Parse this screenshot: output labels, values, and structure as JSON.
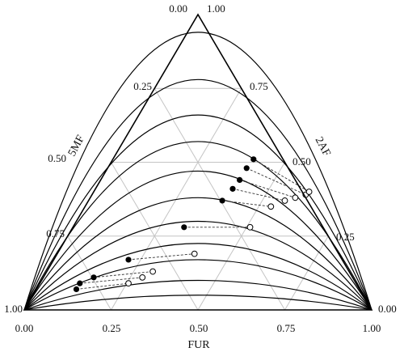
{
  "chart_data": {
    "type": "ternary",
    "axes": {
      "bottom": {
        "label": "FUR",
        "ticks": [
          "0.00",
          "0.25",
          "0.50",
          "0.75",
          "1.00"
        ]
      },
      "left": {
        "label": "5MF",
        "ticks": [
          "0.00",
          "0.25",
          "0.50",
          "0.75",
          "1.00"
        ]
      },
      "right": {
        "label": "2AF",
        "ticks": [
          "1.00",
          "0.75",
          "0.50",
          "0.25",
          "0.00"
        ]
      }
    },
    "grid": true,
    "grid_step": 0.25,
    "binodal_curves_peak_y": [
      0.94,
      0.78,
      0.66,
      0.57,
      0.47,
      0.38,
      0.3,
      0.225,
      0.17,
      0.1,
      0.05
    ],
    "tie_lines": [
      {
        "filled": [
          0.15,
          0.07
        ],
        "open": [
          0.3,
          0.09
        ]
      },
      {
        "filled": [
          0.16,
          0.09
        ],
        "open": [
          0.34,
          0.11
        ]
      },
      {
        "filled": [
          0.2,
          0.11
        ],
        "open": [
          0.37,
          0.13
        ]
      },
      {
        "filled": [
          0.3,
          0.17
        ],
        "open": [
          0.49,
          0.19
        ]
      },
      {
        "filled": [
          0.46,
          0.28
        ],
        "open": [
          0.65,
          0.28
        ]
      },
      {
        "filled": [
          0.57,
          0.37
        ],
        "open": [
          0.71,
          0.35
        ]
      },
      {
        "filled": [
          0.6,
          0.41
        ],
        "open": [
          0.75,
          0.37
        ]
      },
      {
        "filled": [
          0.62,
          0.44
        ],
        "open": [
          0.78,
          0.38
        ]
      },
      {
        "filled": [
          0.64,
          0.48
        ],
        "open": [
          0.81,
          0.39
        ]
      },
      {
        "filled": [
          0.66,
          0.51
        ],
        "open": [
          0.82,
          0.4
        ]
      }
    ]
  }
}
